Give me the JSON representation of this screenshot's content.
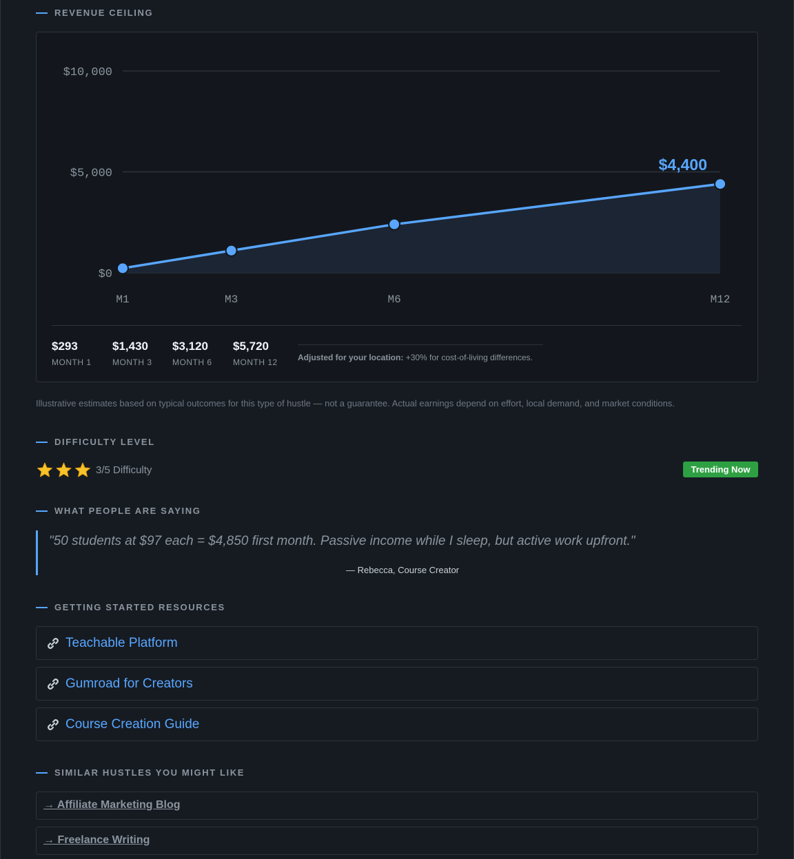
{
  "chart_data": {
    "type": "line",
    "x": [
      1,
      3,
      6,
      12
    ],
    "xlim": [
      1,
      12
    ],
    "xticks": [
      {
        "value": 1,
        "label": "M1"
      },
      {
        "value": 3,
        "label": "M3"
      },
      {
        "value": 6,
        "label": "M6"
      },
      {
        "value": 12,
        "label": "M12"
      }
    ],
    "series": [
      {
        "color": "#58a6ff",
        "values": [
          225,
          1100,
          2400,
          4400
        ],
        "value_labels": [
          null,
          null,
          null,
          "$4,400"
        ]
      }
    ],
    "ylim": [
      0,
      10000
    ],
    "yticks": [
      {
        "value": 0,
        "label": "$0"
      },
      {
        "value": 5000,
        "label": "$5,000"
      },
      {
        "value": 10000,
        "label": "$10,000"
      }
    ],
    "grid": true
  },
  "revenue": {
    "heading": "REVENUE CEILING",
    "stats": [
      {
        "value": "$293",
        "label": "MONTH 1"
      },
      {
        "value": "$1,430",
        "label": "MONTH 3"
      },
      {
        "value": "$3,120",
        "label": "MONTH 6"
      },
      {
        "value": "$5,720",
        "label": "MONTH 12"
      }
    ],
    "note_label": "Adjusted for your location:",
    "note_text": "+30% for cost-of-living differences.",
    "disclaimer": "Illustrative estimates based on typical outcomes for this type of hustle — not a guarantee. Actual earnings depend on effort, local demand, and market conditions."
  },
  "difficulty": {
    "heading": "DIFFICULTY LEVEL",
    "stars": 3,
    "text": "3/5 Difficulty",
    "badge": "Trending Now"
  },
  "testimonial": {
    "heading": "WHAT PEOPLE ARE SAYING",
    "quote": "\"50 students at $97 each = $4,850 first month. Passive income while I sleep, but active work upfront.\"",
    "author": "— Rebecca, Course Creator"
  },
  "resources": {
    "heading": "GETTING STARTED RESOURCES",
    "links": [
      "Teachable Platform",
      "Gumroad for Creators",
      "Course Creation Guide"
    ]
  },
  "similar": {
    "heading": "SIMILAR HUSTLES YOU MIGHT LIKE",
    "links": [
      "→ Affiliate Marketing Blog",
      "→ Freelance Writing"
    ]
  }
}
